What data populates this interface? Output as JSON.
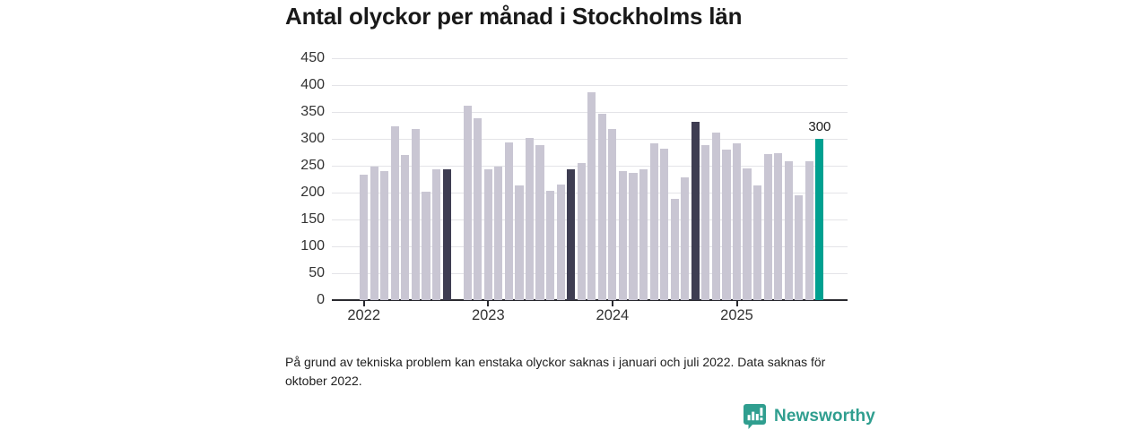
{
  "chart_data": {
    "type": "bar",
    "title": "Antal olyckor per månad i Stockholms län",
    "xlabel": "",
    "ylabel": "",
    "ylim": [
      0,
      450
    ],
    "yticks": [
      0,
      50,
      100,
      150,
      200,
      250,
      300,
      350,
      400,
      450
    ],
    "grid": "horizontal",
    "legend": "none",
    "categories": [
      "2022-01",
      "2022-02",
      "2022-03",
      "2022-04",
      "2022-05",
      "2022-06",
      "2022-07",
      "2022-08",
      "2022-09",
      "2022-10",
      "2022-11",
      "2022-12",
      "2023-01",
      "2023-02",
      "2023-03",
      "2023-04",
      "2023-05",
      "2023-06",
      "2023-07",
      "2023-08",
      "2023-09",
      "2023-10",
      "2023-11",
      "2023-12",
      "2024-01",
      "2024-02",
      "2024-03",
      "2024-04",
      "2024-05",
      "2024-06",
      "2024-07",
      "2024-08",
      "2024-09",
      "2024-10",
      "2024-11",
      "2024-12",
      "2025-01",
      "2025-02",
      "2025-03",
      "2025-04",
      "2025-05",
      "2025-06",
      "2025-07",
      "2025-08",
      "2025-09"
    ],
    "values": [
      233,
      248,
      240,
      323,
      270,
      319,
      201,
      244,
      244,
      null,
      361,
      339,
      243,
      248,
      293,
      213,
      302,
      288,
      204,
      215,
      243,
      255,
      387,
      346,
      319,
      240,
      237,
      244,
      292,
      282,
      189,
      229,
      332,
      289,
      311,
      280,
      292,
      245,
      214,
      272,
      273,
      259,
      195,
      258,
      300
    ],
    "missing_indices": [
      9
    ],
    "emphasis_dark_indices": [
      8,
      20,
      32
    ],
    "latest_index": 44,
    "latest_value_label": "300",
    "year_ticks": [
      {
        "index": 0,
        "label": "2022"
      },
      {
        "index": 12,
        "label": "2023"
      },
      {
        "index": 24,
        "label": "2024"
      },
      {
        "index": 36,
        "label": "2025"
      }
    ],
    "colors": {
      "bar": "#c9c6d3",
      "bar_emphasis": "#3e3d52",
      "bar_latest": "#00a090",
      "grid": "#e4e4e8",
      "axis": "#2a2a30",
      "tick_text": "#333333",
      "title_text": "#191919"
    }
  },
  "footnote": "På grund av tekniska problem kan enstaka olyckor saknas i januari och juli 2022. Data saknas för\noktober 2022.",
  "logo": {
    "text": "Newsworthy",
    "color": "#2f9e8f"
  }
}
